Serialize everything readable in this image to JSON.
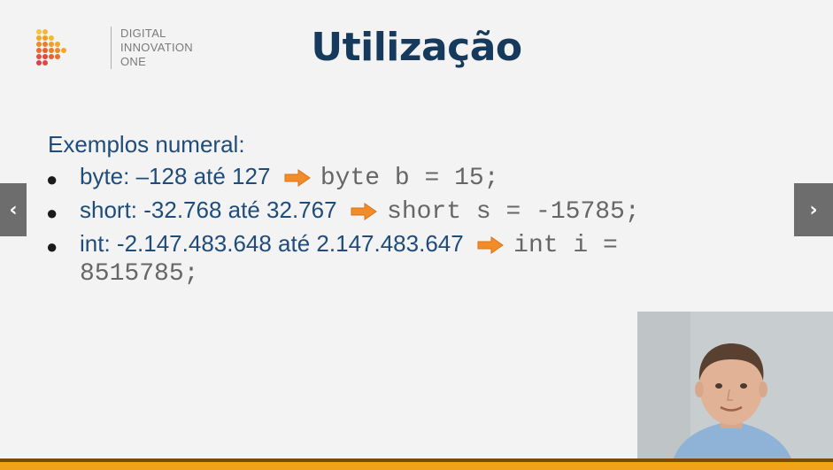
{
  "logo": {
    "line1": "DIGITAL",
    "line2": "INNOVATION",
    "line3": "ONE"
  },
  "title": "Utilização",
  "subhead": "Exemplos numeral:",
  "bullets": [
    {
      "text": "byte: –128 até 127",
      "code": "byte b = 15;"
    },
    {
      "text": "short: -32.768 até 32.767",
      "code": "short s = -15785;"
    },
    {
      "text": "int: -2.147.483.648 até 2.147.483.647",
      "code": "int i ="
    }
  ],
  "continuation": "8515785;",
  "icons": {
    "arrow": "right-arrow-icon",
    "nav_prev": "chevron-left-icon",
    "nav_next": "chevron-right-icon"
  },
  "colors": {
    "title": "#163a5c",
    "text": "#1f4c7a",
    "code": "#666666",
    "accent": "#f0a21a",
    "arrow": "#f28c28"
  }
}
